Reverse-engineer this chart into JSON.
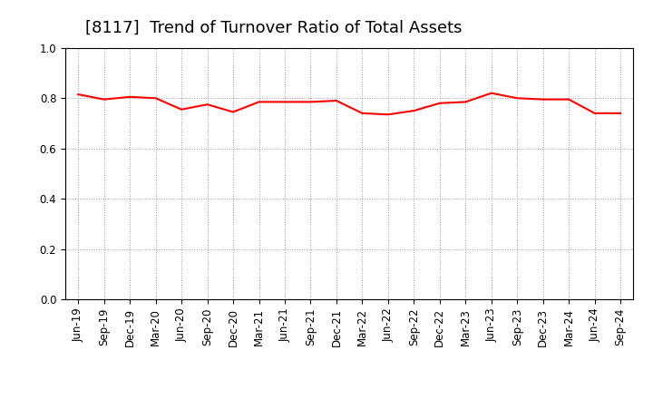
{
  "title": "[8117]  Trend of Turnover Ratio of Total Assets",
  "x_labels": [
    "Jun-19",
    "Sep-19",
    "Dec-19",
    "Mar-20",
    "Jun-20",
    "Sep-20",
    "Dec-20",
    "Mar-21",
    "Jun-21",
    "Sep-21",
    "Dec-21",
    "Mar-22",
    "Jun-22",
    "Sep-22",
    "Dec-22",
    "Mar-23",
    "Jun-23",
    "Sep-23",
    "Dec-23",
    "Mar-24",
    "Jun-24",
    "Sep-24"
  ],
  "y_values": [
    0.815,
    0.795,
    0.805,
    0.8,
    0.755,
    0.775,
    0.745,
    0.785,
    0.785,
    0.785,
    0.79,
    0.74,
    0.735,
    0.75,
    0.78,
    0.785,
    0.82,
    0.8,
    0.795,
    0.795,
    0.74,
    0.74
  ],
  "line_color": "#ff0000",
  "line_width": 1.5,
  "ylim": [
    0.0,
    1.0
  ],
  "yticks": [
    0.0,
    0.2,
    0.4,
    0.6,
    0.8,
    1.0
  ],
  "background_color": "#ffffff",
  "grid_color": "#999999",
  "title_fontsize": 13,
  "tick_fontsize": 8.5
}
